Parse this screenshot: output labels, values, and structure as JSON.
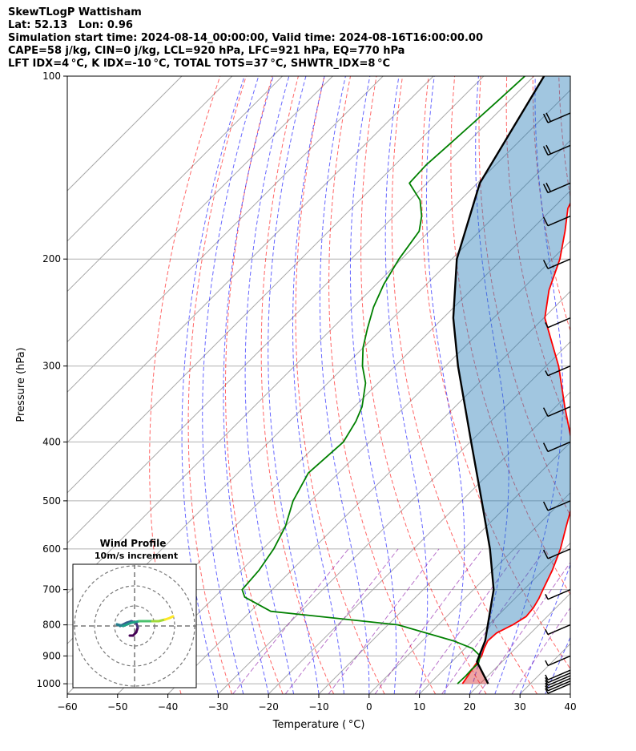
{
  "header": {
    "lines": [
      "SkewTLogP Wattisham",
      "Lat: 52.13   Lon: 0.96",
      "Simulation start time: 2024-08-14_00:00:00, Valid time: 2024-08-16T16:00:00.00",
      "CAPE=58 j/kg, CIN=0 j/kg, LCL=920 hPa, LFC=921 hPa, EQ=770 hPa",
      "LFT IDX=4 °C, K IDX=-10 °C, TOTAL TOTS=37 °C, SHWTR_IDX=8 °C"
    ]
  },
  "chart_data": {
    "type": "line",
    "subtype": "skew-T log-P diagram",
    "xlabel": "Temperature ( °C)",
    "ylabel": "Pressure (hPa)",
    "xlim": [
      -60,
      40
    ],
    "ylim": [
      1040,
      100
    ],
    "x_ticks": [
      -60,
      -50,
      -40,
      -30,
      -20,
      -10,
      0,
      10,
      20,
      30,
      40
    ],
    "x_tick_labels": [
      "−60",
      "−50",
      "−40",
      "−30",
      "−20",
      "−10",
      "0",
      "10",
      "20",
      "30",
      "40"
    ],
    "y_ticks": [
      1000,
      900,
      800,
      700,
      600,
      500,
      400,
      300,
      200,
      100
    ],
    "y_tick_labels": [
      "1000",
      "900",
      "800",
      "700",
      "600",
      "500",
      "400",
      "300",
      "200",
      "100"
    ],
    "log_y": true,
    "skew_deg": 45,
    "grid": true,
    "colors": {
      "temperature": "#ff0000",
      "dewpoint": "#008000",
      "parcel": "#000000",
      "cape_fill": "#1f77b4",
      "cin_fill": "#d62728",
      "dry_adiabat": "#ff0000",
      "moist_adiabat": "#0000ff",
      "mixing_ratio": "#8000a0",
      "isotherm": "#808080"
    },
    "series": [
      {
        "key": "temperature",
        "p": [
          1000,
          970,
          950,
          925,
          900,
          875,
          850,
          825,
          800,
          775,
          750,
          725,
          700,
          650,
          600,
          550,
          500,
          450,
          400,
          350,
          300,
          250,
          225,
          200,
          180,
          165,
          150,
          125,
          100
        ],
        "t": [
          16.5,
          16.0,
          15.6,
          15.2,
          14.8,
          13.8,
          13.0,
          13.2,
          14.8,
          15.8,
          15.5,
          14.8,
          13.8,
          11.8,
          9.2,
          5.8,
          2.2,
          -3.2,
          -9.8,
          -18.2,
          -27.5,
          -39.8,
          -44.5,
          -48.5,
          -53.0,
          -57.0,
          -59.5,
          -62.0,
          -63.0
        ]
      },
      {
        "key": "dewpoint",
        "p": [
          1000,
          970,
          950,
          925,
          900,
          875,
          850,
          800,
          760,
          720,
          700,
          650,
          600,
          550,
          500,
          450,
          400,
          370,
          350,
          320,
          300,
          280,
          260,
          240,
          220,
          200,
          180,
          170,
          160,
          150,
          140,
          130,
          120,
          110,
          100
        ],
        "t": [
          15.5,
          15.6,
          15.5,
          15.6,
          14.5,
          11.5,
          6.2,
          -8.0,
          -36.0,
          -44.0,
          -46.0,
          -46.5,
          -47.8,
          -50.0,
          -53.5,
          -56.0,
          -55.2,
          -56.8,
          -58.5,
          -62.5,
          -66.5,
          -70.0,
          -73.0,
          -76.0,
          -78.5,
          -80.5,
          -82.0,
          -84.5,
          -88.0,
          -93.5,
          -93.8,
          -93.3,
          -92.8,
          -92.3,
          -91.8
        ]
      },
      {
        "key": "parcel",
        "p": [
          1000,
          920,
          850,
          700,
          600,
          500,
          400,
          300,
          250,
          200,
          150,
          100
        ],
        "t": [
          21.6,
          15.0,
          12.5,
          4.0,
          -4.8,
          -16.0,
          -29.8,
          -47.5,
          -58.0,
          -69.0,
          -79.5,
          -88.0
        ]
      }
    ],
    "wind_barbs": {
      "p": [
        1000,
        990,
        980,
        970,
        960,
        950,
        900,
        800,
        700,
        600,
        500,
        400,
        350,
        300,
        250,
        200,
        170,
        150,
        130,
        115
      ],
      "speed_kt": [
        3,
        3,
        3,
        3,
        3,
        3,
        5,
        5,
        5,
        10,
        10,
        10,
        10,
        5,
        5,
        10,
        10,
        20,
        20,
        20
      ]
    },
    "inset": {
      "title": "Wind Profile",
      "subtitle": "10m/s increment"
    }
  }
}
